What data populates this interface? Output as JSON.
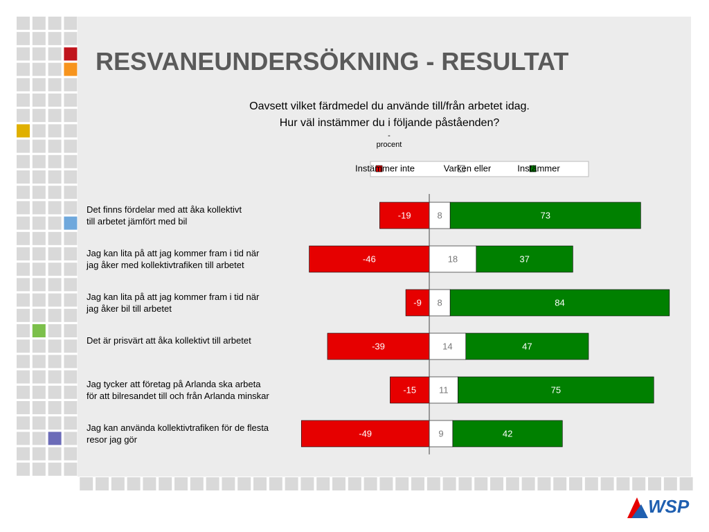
{
  "title": "RESVANEUNDERSÖKNING - RESULTAT",
  "logo": "WSP",
  "chart_data": {
    "type": "diverging-stacked-bar",
    "subtitle": "Oavsett vilket färdmedel du använde till/från arbetet idag.\nHur väl instämmer du i följande påståenden?",
    "unit_label": "-\nprocent",
    "categories": [
      "Det finns fördelar med att åka kollektivt\ntill arbetet jämfört med bil",
      "Jag kan lita på att jag kommer fram i tid när\njag åker med kollektivtrafiken till arbetet",
      "Jag kan lita på att jag kommer fram i tid när\njag åker bil till arbetet",
      "Det är prisvärt att åka kollektivt till arbetet",
      "Jag tycker att företag på Arlanda ska arbeta\nför att bilresandet till och från Arlanda minskar",
      "Jag kan använda kollektivtrafiken för de flesta\nresor jag gör"
    ],
    "series": [
      {
        "name": "Instämmer inte",
        "color": "#e60000",
        "values": [
          -19,
          -46,
          -9,
          -39,
          -15,
          -49
        ]
      },
      {
        "name": "Varken eller",
        "color": "#ffffff",
        "values": [
          8,
          18,
          8,
          14,
          11,
          9
        ]
      },
      {
        "name": "Instämmer",
        "color": "#008000",
        "values": [
          73,
          37,
          84,
          47,
          75,
          42
        ]
      }
    ],
    "xlim": [
      -50,
      100
    ],
    "legend": "top-right"
  }
}
